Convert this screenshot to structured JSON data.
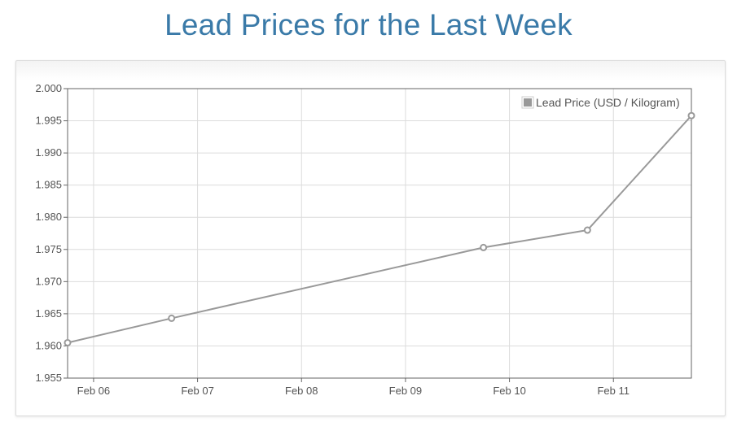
{
  "page": {
    "title": "Lead Prices for the Last Week"
  },
  "chart_data": {
    "type": "line",
    "title": "Lead Prices for the Last Week",
    "xlabel": "",
    "ylabel": "",
    "x_axis": {
      "type": "date",
      "range": [
        "2024-02-05T18:00",
        "2024-02-11T18:00"
      ],
      "tick_labels": [
        "Feb 06",
        "Feb 07",
        "Feb 08",
        "Feb 09",
        "Feb 10",
        "Feb 11"
      ],
      "tick_dates": [
        "2024-02-06",
        "2024-02-07",
        "2024-02-08",
        "2024-02-09",
        "2024-02-10",
        "2024-02-11"
      ]
    },
    "y_axis": {
      "range": [
        1.955,
        2.0
      ],
      "tick_labels": [
        "2.000",
        "1.995",
        "1.990",
        "1.985",
        "1.980",
        "1.975",
        "1.970",
        "1.965",
        "1.960",
        "1.955"
      ],
      "tick_values": [
        2.0,
        1.995,
        1.99,
        1.985,
        1.98,
        1.975,
        1.97,
        1.965,
        1.96,
        1.955
      ]
    },
    "grid": true,
    "legend": {
      "position": "top-right"
    },
    "series": [
      {
        "name": "Lead Price (USD / Kilogram)",
        "color": "#999999",
        "points": [
          {
            "x": "2024-02-05T18:00",
            "y": 1.9605
          },
          {
            "x": "2024-02-06T18:00",
            "y": 1.9643
          },
          {
            "x": "2024-02-09T18:00",
            "y": 1.9753
          },
          {
            "x": "2024-02-10T18:00",
            "y": 1.978
          },
          {
            "x": "2024-02-11T18:00",
            "y": 1.9958
          }
        ]
      }
    ],
    "colors": {
      "grid": "#dcdcdc",
      "axis": "#666666",
      "title": "#3a7aa8",
      "point_fill": "#ffffff"
    }
  }
}
